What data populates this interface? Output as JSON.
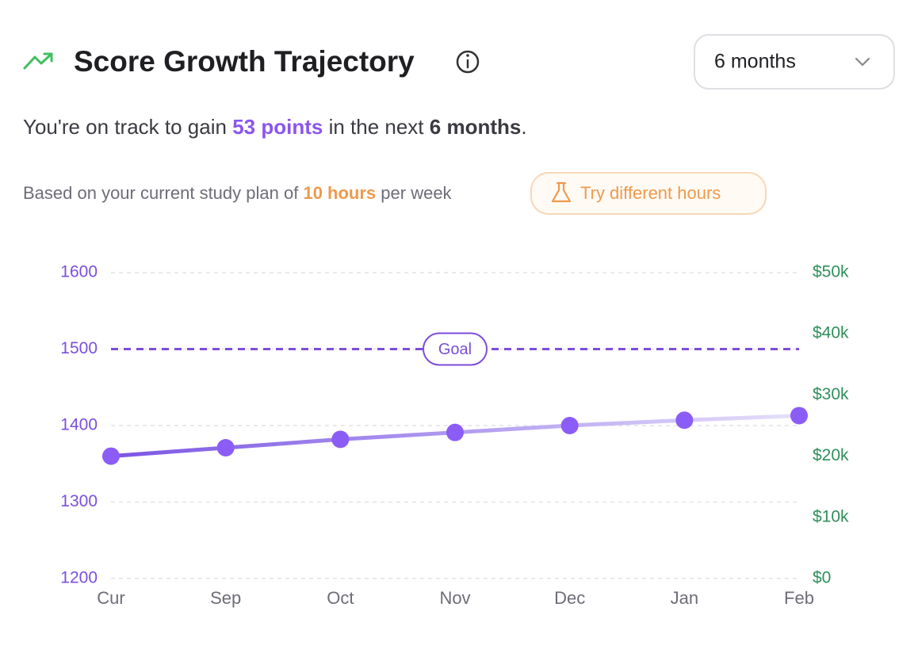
{
  "header": {
    "title": "Score Growth Trajectory",
    "dropdown": "6 months"
  },
  "summary": {
    "prefix": "You're on track to gain",
    "points": "53 points",
    "middle": "in the next",
    "period": "6 months",
    "suffix": "."
  },
  "plan": {
    "prefix": "Based on your current study plan of",
    "hours": "10 hours",
    "suffix": "per week",
    "button": "Try different hours"
  },
  "chart_data": {
    "type": "line",
    "categories": [
      "Cur",
      "Sep",
      "Oct",
      "Nov",
      "Dec",
      "Jan",
      "Feb"
    ],
    "series": [
      {
        "color": "#8b5cf6",
        "values": [
          1360,
          1371,
          1382,
          1391,
          1400,
          1407,
          1413
        ]
      }
    ],
    "ylim": [
      1200,
      1600
    ],
    "yticks": [
      1200,
      1300,
      1400,
      1500,
      1600
    ],
    "y2lim": [
      0,
      50000
    ],
    "y2ticks": [
      {
        "value": 0,
        "label": "$0"
      },
      {
        "value": 10000,
        "label": "$10k"
      },
      {
        "value": 20000,
        "label": "$20k"
      },
      {
        "value": 30000,
        "label": "$30k"
      },
      {
        "value": 40000,
        "label": "$40k"
      },
      {
        "value": 50000,
        "label": "$50k"
      }
    ],
    "goal": {
      "value": 1500,
      "label": "Goal"
    },
    "grid": true
  }
}
